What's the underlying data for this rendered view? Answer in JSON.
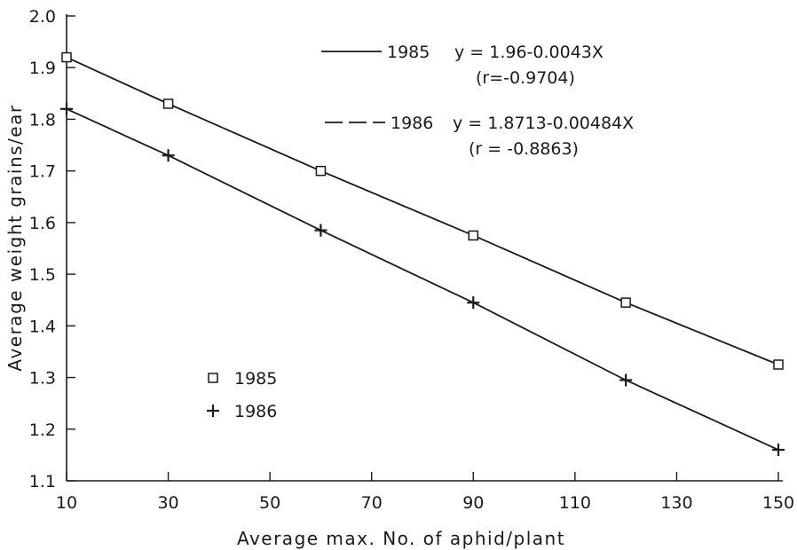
{
  "chart_data": {
    "type": "line",
    "xlabel": "Average max. No. of aphid/plant",
    "ylabel": "Average weight grains/ear",
    "xlim": [
      10,
      150
    ],
    "ylim": [
      1.1,
      2.0
    ],
    "x_ticks": [
      "10",
      "30",
      "50",
      "70",
      "90",
      "110",
      "130",
      "150"
    ],
    "y_ticks": [
      "1.1",
      "1.2",
      "1.3",
      "1.4",
      "1.5",
      "1.6",
      "1.7",
      "1.8",
      "1.9",
      "2.0"
    ],
    "grid": false,
    "series": [
      {
        "name": "1985",
        "marker": "square",
        "line_style": "solid",
        "x": [
          10,
          30,
          60,
          90,
          120,
          150
        ],
        "y": [
          1.92,
          1.83,
          1.7,
          1.575,
          1.445,
          1.325
        ]
      },
      {
        "name": "1986",
        "marker": "plus",
        "line_style": "dashed",
        "x": [
          10,
          30,
          60,
          90,
          120,
          150
        ],
        "y": [
          1.82,
          1.73,
          1.585,
          1.445,
          1.295,
          1.16
        ]
      }
    ],
    "regression_legend": [
      {
        "year": "1985",
        "equation": "y = 1.96-0.0043X",
        "r": "(r=-0.9704)"
      },
      {
        "year": "1986",
        "equation": "y = 1.8713-0.00484X",
        "r": "(r = -0.8863)"
      }
    ],
    "marker_legend": [
      "1985",
      "1986"
    ]
  }
}
